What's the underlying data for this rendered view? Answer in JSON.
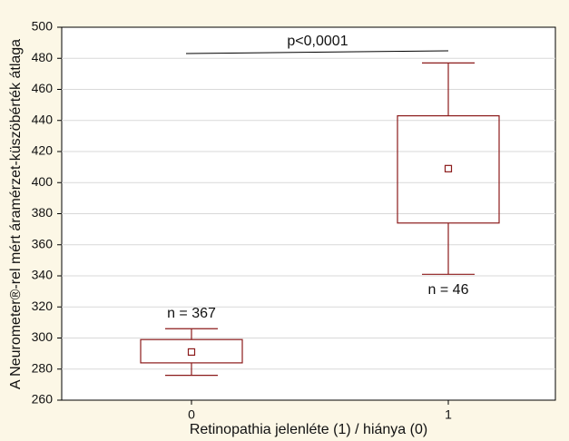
{
  "chart_data": {
    "type": "box",
    "x_label": "Retinopathia jelenléte (1) / hiánya (0)",
    "y_label": "A Neurometer®-rel mért áramérzet-küszöbérték átlaga",
    "categories": [
      "0",
      "1"
    ],
    "color": "#8b1a1a",
    "mean": [
      291,
      409
    ],
    "box_low": [
      284,
      374
    ],
    "box_high": [
      299,
      443
    ],
    "whisker_low": [
      276,
      341
    ],
    "whisker_high": [
      306,
      477
    ],
    "annotations": [
      "p<0,0001",
      "n = 367",
      "n = 46"
    ],
    "ylim": [
      260,
      500
    ],
    "yticks": [
      260,
      280,
      300,
      320,
      340,
      360,
      380,
      400,
      420,
      440,
      460,
      480,
      500
    ],
    "grid": true
  }
}
